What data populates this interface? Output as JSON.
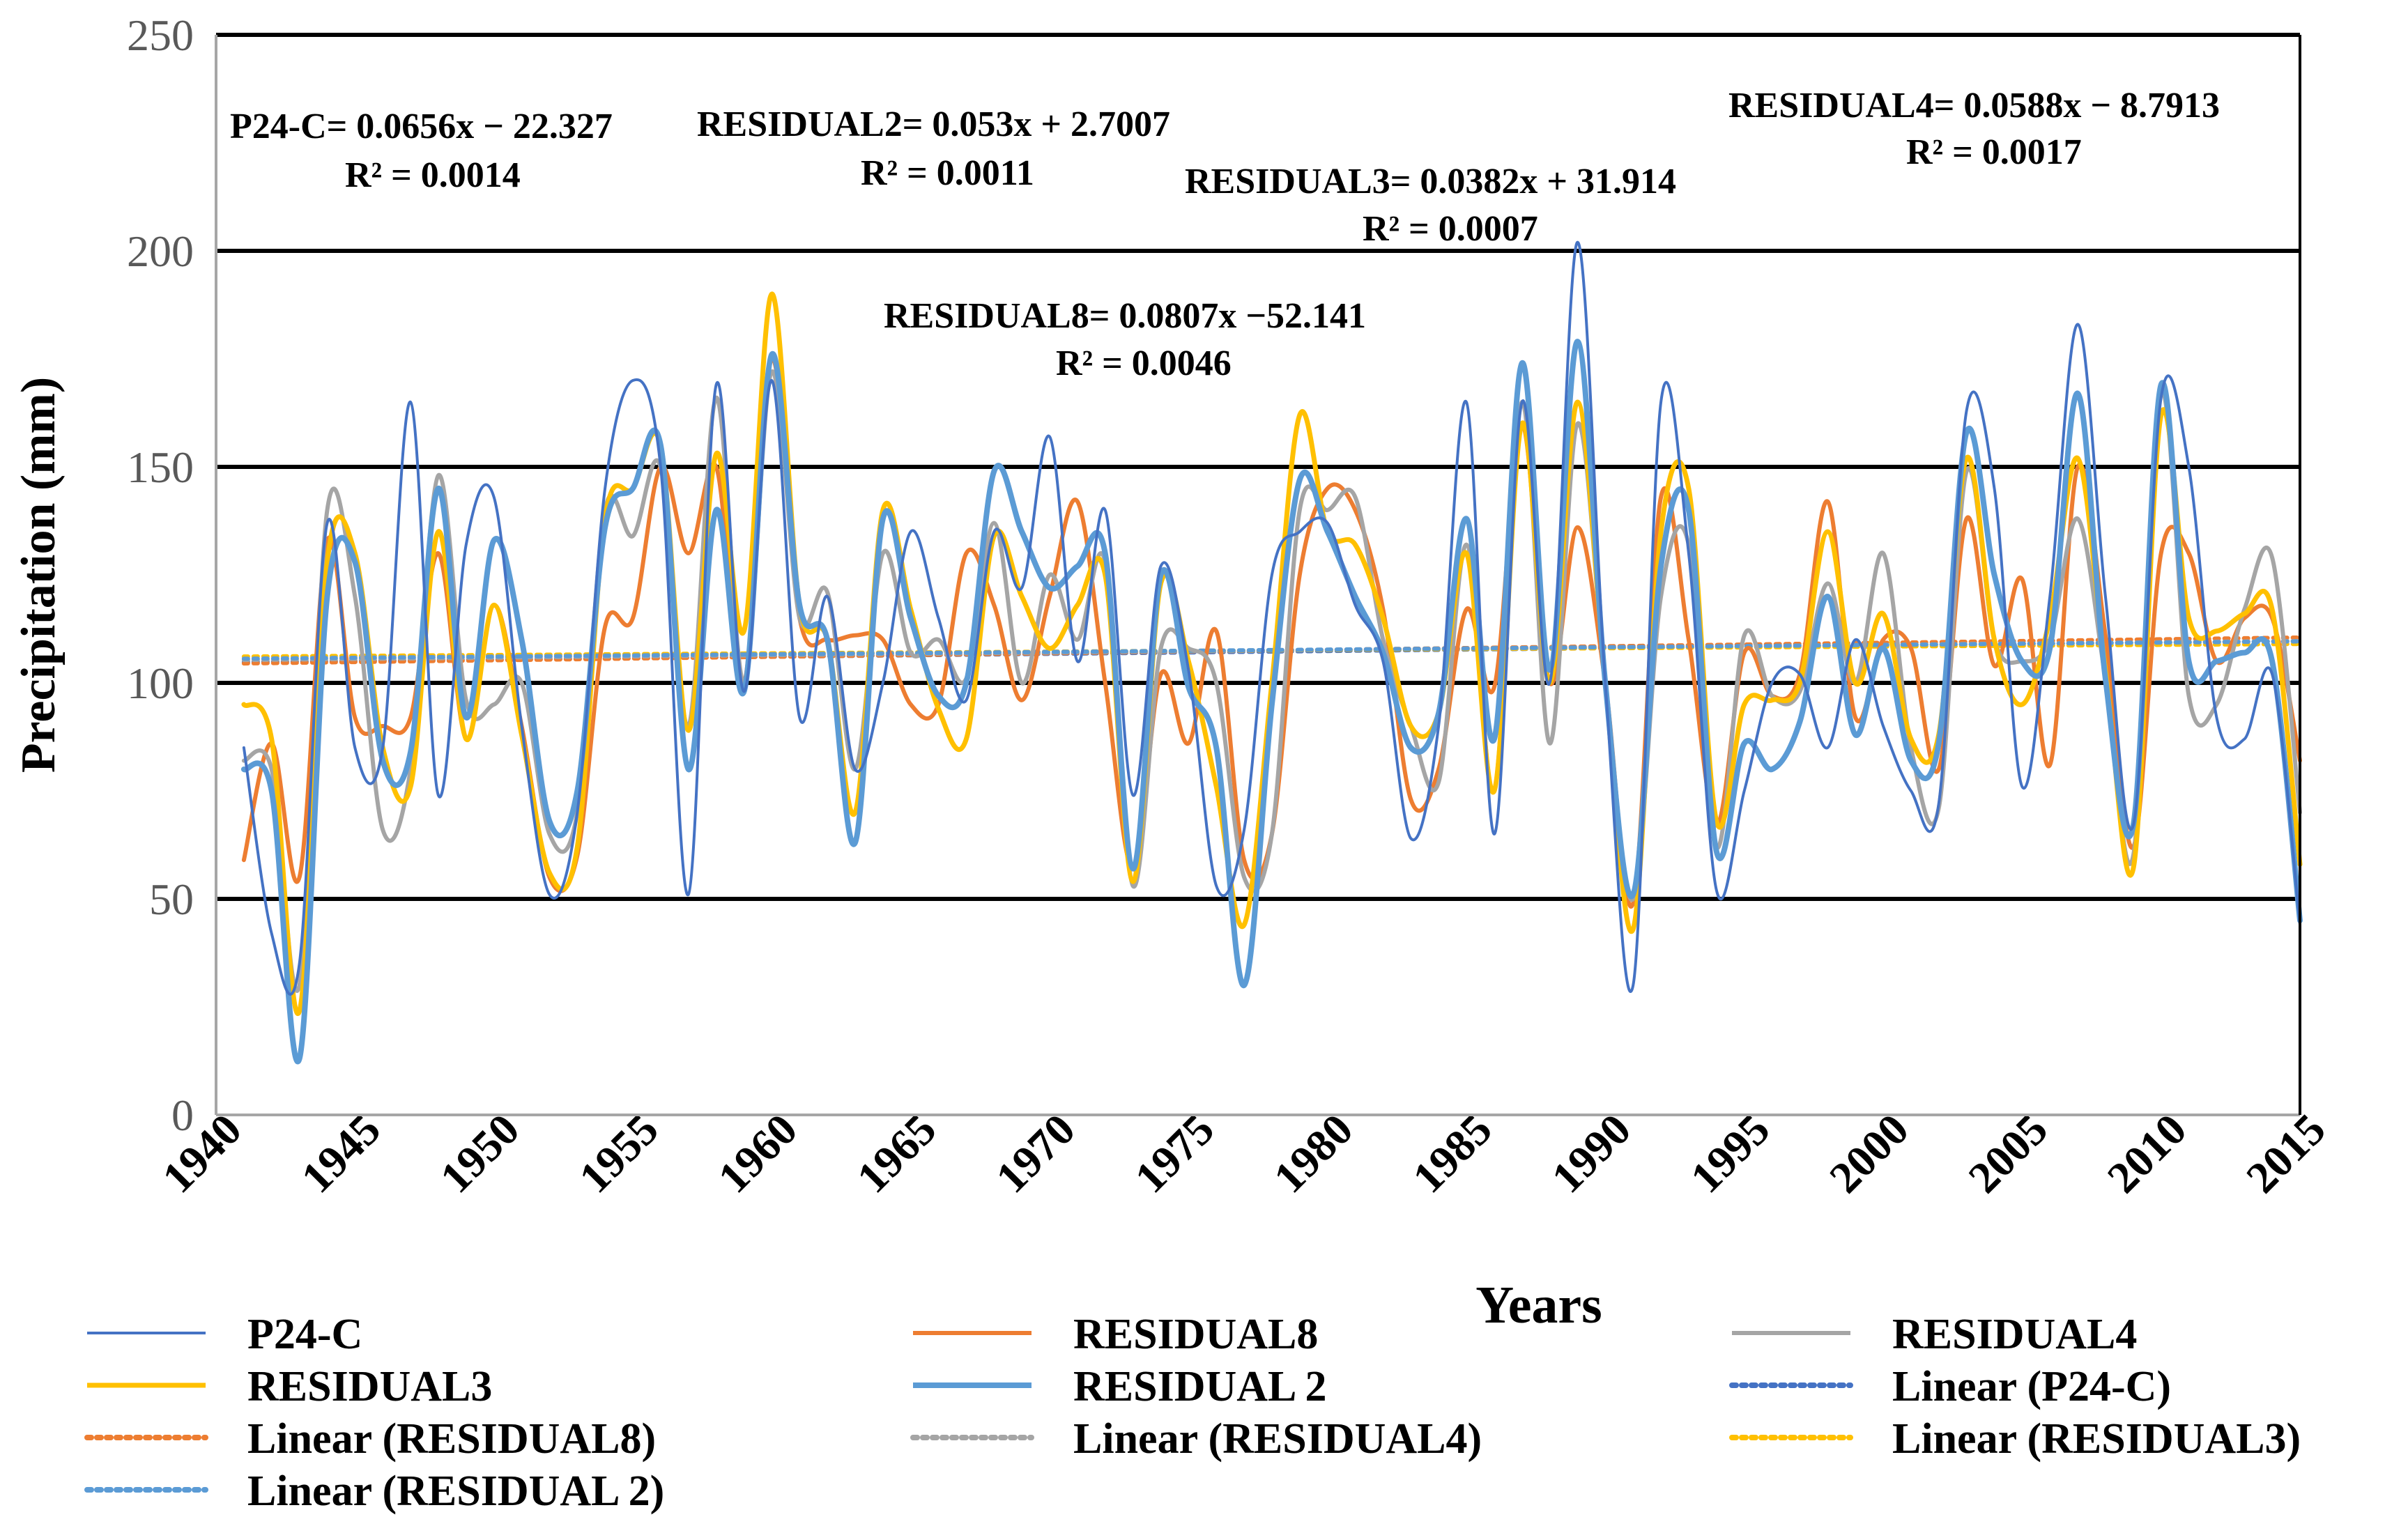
{
  "chart_data": {
    "type": "line",
    "title": "",
    "xlabel": "Years",
    "ylabel": "Precipitation (mm)",
    "xlim": [
      1940,
      2015
    ],
    "ylim": [
      0,
      250
    ],
    "yticks": [
      "0",
      "50",
      "100",
      "150",
      "200",
      "250"
    ],
    "xticks": [
      "1940",
      "1945",
      "1950",
      "1955",
      "1960",
      "1965",
      "1970",
      "1975",
      "1980",
      "1985",
      "1990",
      "1995",
      "2000",
      "2005",
      "2010",
      "2015"
    ],
    "grid": "horizontal",
    "legend_position": "bottom",
    "x": [
      1941,
      1942,
      1943,
      1944,
      1945,
      1946,
      1947,
      1948,
      1949,
      1950,
      1951,
      1952,
      1953,
      1954,
      1955,
      1956,
      1957,
      1958,
      1959,
      1960,
      1961,
      1962,
      1963,
      1964,
      1965,
      1966,
      1967,
      1968,
      1969,
      1970,
      1971,
      1972,
      1973,
      1974,
      1975,
      1976,
      1977,
      1978,
      1979,
      1980,
      1981,
      1982,
      1983,
      1984,
      1985,
      1986,
      1987,
      1988,
      1989,
      1990,
      1991,
      1992,
      1993,
      1994,
      1995,
      1996,
      1997,
      1998,
      1999,
      2000,
      2001,
      2002,
      2003,
      2004,
      2005,
      2006,
      2007,
      2008,
      2009,
      2010,
      2011,
      2012,
      2013,
      2014,
      2015
    ],
    "series": [
      {
        "name": "P24-C",
        "color": "#4472C4",
        "width": 4,
        "dash": false,
        "values": [
          85,
          42,
          35,
          137,
          85,
          85,
          165,
          74,
          132,
          143,
          90,
          51,
          70,
          145,
          170,
          150,
          51,
          169,
          98,
          170,
          92,
          120,
          80,
          100,
          135,
          115,
          96,
          135,
          122,
          157,
          105,
          140,
          74,
          127,
          103,
          53,
          66,
          125,
          135,
          137,
          118,
          105,
          64,
          90,
          165,
          65,
          165,
          100,
          202,
          100,
          30,
          165,
          130,
          52,
          75,
          100,
          102,
          85,
          110,
          90,
          75,
          72,
          163,
          145,
          76,
          120,
          183,
          120,
          67,
          166,
          150,
          92,
          87,
          102,
          44
        ]
      },
      {
        "name": "RESIDUAL8",
        "color": "#ED7D31",
        "width": 6,
        "dash": false,
        "values": [
          59,
          86,
          55,
          133,
          92,
          90,
          92,
          130,
          87,
          118,
          90,
          55,
          60,
          113,
          115,
          150,
          130,
          150,
          100,
          175,
          115,
          110,
          111,
          110,
          95,
          95,
          130,
          118,
          96,
          120,
          142,
          100,
          57,
          102,
          86,
          112,
          59,
          65,
          125,
          145,
          140,
          117,
          73,
          80,
          117,
          99,
          160,
          100,
          136,
          100,
          49,
          143,
          110,
          67,
          107,
          97,
          102,
          142,
          92,
          110,
          108,
          80,
          138,
          104,
          124,
          81,
          150,
          111,
          62,
          130,
          130,
          105,
          115,
          115,
          82
        ]
      },
      {
        "name": "RESIDUAL4",
        "color": "#A5A5A5",
        "width": 6,
        "dash": false,
        "values": [
          82,
          80,
          30,
          140,
          120,
          66,
          80,
          148,
          96,
          95,
          100,
          65,
          70,
          140,
          134,
          150,
          90,
          166,
          100,
          172,
          115,
          121,
          80,
          130,
          107,
          110,
          101,
          137,
          100,
          125,
          110,
          128,
          53,
          108,
          108,
          100,
          55,
          65,
          140,
          140,
          143,
          110,
          90,
          77,
          132,
          75,
          165,
          86,
          160,
          100,
          50,
          120,
          132,
          62,
          111,
          97,
          98,
          123,
          100,
          130,
          85,
          71,
          149,
          110,
          105,
          110,
          138,
          101,
          60,
          167,
          97,
          95,
          117,
          129,
          70
        ]
      },
      {
        "name": "RESIDUAL3",
        "color": "#FFC000",
        "width": 7,
        "dash": false,
        "values": [
          95,
          87,
          24,
          128,
          130,
          85,
          76,
          135,
          87,
          118,
          88,
          56,
          62,
          138,
          145,
          155,
          89,
          153,
          112,
          190,
          118,
          110,
          70,
          140,
          117,
          94,
          87,
          134,
          120,
          108,
          118,
          125,
          54,
          123,
          105,
          76,
          44,
          100,
          162,
          135,
          132,
          115,
          90,
          93,
          130,
          75,
          160,
          100,
          165,
          100,
          43,
          135,
          145,
          68,
          95,
          96,
          100,
          135,
          100,
          116,
          87,
          88,
          152,
          110,
          95,
          115,
          152,
          103,
          57,
          162,
          115,
          112,
          116,
          117,
          58
        ]
      },
      {
        "name": "RESIDUAL 2",
        "color": "#5B9BD5",
        "width": 8,
        "dash": false,
        "values": [
          80,
          75,
          13,
          120,
          128,
          82,
          84,
          145,
          92,
          133,
          110,
          68,
          75,
          136,
          145,
          155,
          80,
          140,
          98,
          176,
          118,
          110,
          63,
          138,
          115,
          97,
          100,
          149,
          135,
          122,
          127,
          130,
          57,
          125,
          99,
          85,
          30,
          95,
          147,
          135,
          120,
          107,
          85,
          93,
          138,
          87,
          174,
          103,
          179,
          100,
          51,
          127,
          140,
          61,
          86,
          80,
          91,
          120,
          88,
          108,
          82,
          86,
          158,
          125,
          105,
          108,
          167,
          101,
          67,
          169,
          105,
          105,
          107,
          105,
          45
        ]
      },
      {
        "name": "Linear (P24-C)",
        "color": "#4472C4",
        "width": 6,
        "dash": true,
        "trend": [
          104.8,
          109.7
        ]
      },
      {
        "name": "Linear (RESIDUAL8)",
        "color": "#ED7D31",
        "width": 6,
        "dash": true,
        "trend": [
          104.5,
          110.5
        ]
      },
      {
        "name": "Linear (RESIDUAL4)",
        "color": "#A5A5A5",
        "width": 6,
        "dash": true,
        "trend": [
          105.3,
          109.7
        ]
      },
      {
        "name": "Linear (RESIDUAL3)",
        "color": "#FFC000",
        "width": 6,
        "dash": true,
        "trend": [
          106.1,
          109.0
        ]
      },
      {
        "name": "Linear (RESIDUAL 2)",
        "color": "#5B9BD5",
        "width": 6,
        "dash": true,
        "trend": [
          105.6,
          109.6
        ]
      }
    ],
    "annotations": [
      {
        "line1": "P24-C= 0.0656x − 22.327",
        "line2": "R² = 0.0014"
      },
      {
        "line1": "RESIDUAL2= 0.053x + 2.7007",
        "line2": "R² = 0.0011"
      },
      {
        "line1": "RESIDUAL3= 0.0382x + 31.914",
        "line2": "R² = 0.0007"
      },
      {
        "line1": "RESIDUAL4= 0.0588x − 8.7913",
        "line2": "R² = 0.0017"
      },
      {
        "line1": "RESIDUAL8= 0.0807x −52.141",
        "line2": "R² = 0.0046"
      }
    ]
  }
}
